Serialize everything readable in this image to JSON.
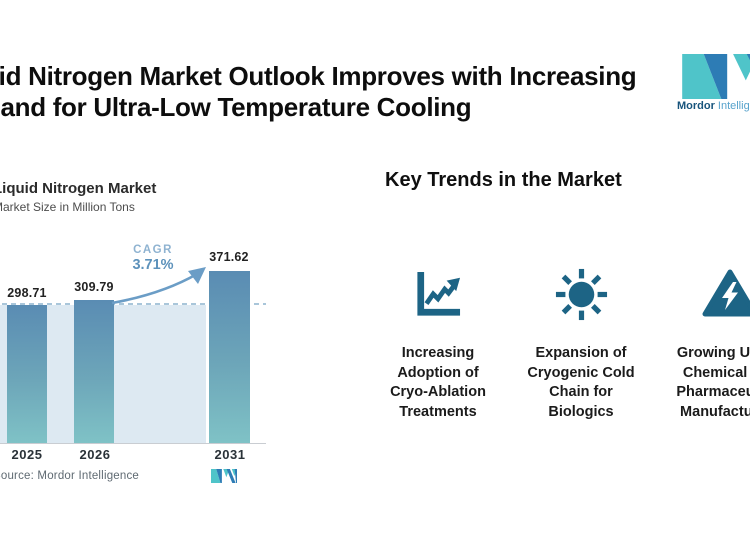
{
  "header": {
    "title": "Liquid Nitrogen Market Outlook Improves with Increasing\nDemand for Ultra-Low Temperature Cooling"
  },
  "brand": {
    "name_bold": "Mordor",
    "name_regular": "Intelligence",
    "teal": "#4fc4c9",
    "blue": "#2d7cb5"
  },
  "chart_data": {
    "type": "bar",
    "title": "Liquid Nitrogen Market",
    "subtitle": "Market Size in Million Tons",
    "categories": [
      "2025",
      "2026",
      "2031"
    ],
    "values": [
      298.71,
      309.79,
      371.62
    ],
    "unit": "Million Tons",
    "cagr": {
      "label": "CAGR",
      "value": "3.71%"
    },
    "source": "Source: Mordor Intelligence",
    "ylim": [
      0,
      400
    ],
    "grid": "off",
    "legend": "none",
    "annotations": [
      "dashed reference line at first bar level (298.71)",
      "CAGR 3.71% arrow from 2026 bar to 2031 bar"
    ],
    "colors": {
      "bar_top": "#5a8cb3",
      "bar_bottom": "#7fc2c6",
      "plot_band": "#dde9f2",
      "dashed_line": "#a9c6da",
      "cagr_text": "#5d92bb",
      "arrow": "#6b9dc6"
    }
  },
  "key_trends": {
    "heading": "Key Trends in the Market",
    "icon_color": "#1d6485",
    "items": [
      {
        "icon": "line-chart-up-icon",
        "label": "Increasing\nAdoption of\nCryo-Ablation\nTreatments"
      },
      {
        "icon": "sun-icon",
        "label": "Expansion of\nCryogenic Cold\nChain for\nBiologics"
      },
      {
        "icon": "hazard-lightning-icon",
        "label": "Growing Use in\nChemical and\nPharmaceutical\nManufacturing"
      }
    ]
  }
}
